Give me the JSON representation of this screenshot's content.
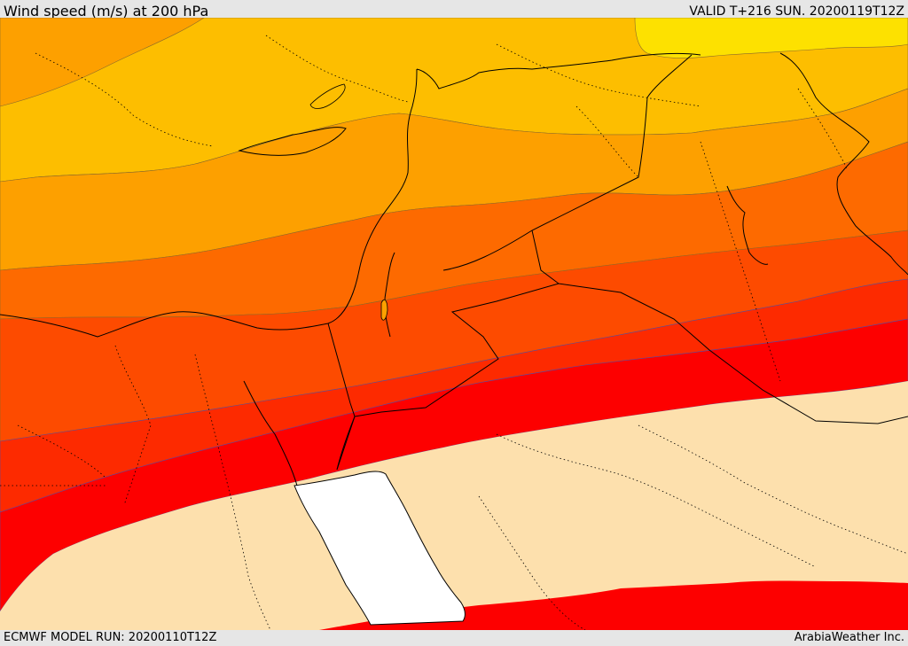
{
  "header": {
    "title": "Wind speed (m/s) at 200 hPa",
    "valid": "VALID T+216 SUN. 20200119T12Z"
  },
  "footer": {
    "model_run": "ECMWF MODEL RUN: 20200110T12Z",
    "credit": "ArabiaWeather Inc."
  },
  "map": {
    "colors": {
      "lightest": "#fde0ad",
      "yellow": "#fde100",
      "gold": "#fdbe00",
      "amber": "#fda000",
      "orange": "#fd8600",
      "deep_orange": "#fd6a00",
      "orange_red": "#fd4b00",
      "red_orange": "#fd2a00",
      "red": "#fd0000",
      "sea_white": "#ffffff",
      "borders": "#000000",
      "contour_line": "#6a5acd"
    }
  }
}
